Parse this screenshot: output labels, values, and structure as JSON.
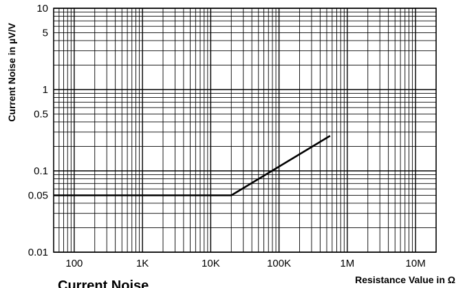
{
  "chart_data": {
    "type": "line",
    "title": "Current Noise",
    "xlabel": "Resistance Value in Ω",
    "ylabel": "Current Noise in µV/V",
    "x_scale": "log",
    "y_scale": "log",
    "xlim": [
      50,
      20000000
    ],
    "ylim": [
      0.01,
      10
    ],
    "x_ticks": [
      {
        "value": 100,
        "label": "100"
      },
      {
        "value": 1000,
        "label": "1K"
      },
      {
        "value": 10000,
        "label": "10K"
      },
      {
        "value": 100000,
        "label": "100K"
      },
      {
        "value": 1000000,
        "label": "1M"
      },
      {
        "value": 10000000,
        "label": "10M"
      }
    ],
    "y_ticks": [
      {
        "value": 10,
        "label": "10"
      },
      {
        "value": 5,
        "label": "5"
      },
      {
        "value": 1,
        "label": "1"
      },
      {
        "value": 0.5,
        "label": "0.5"
      },
      {
        "value": 0.1,
        "label": "0.1"
      },
      {
        "value": 0.05,
        "label": "0.05"
      },
      {
        "value": 0.01,
        "label": "0.01"
      }
    ],
    "grid": true,
    "series": [
      {
        "x": [
          50,
          20000,
          560000
        ],
        "y": [
          0.05,
          0.05,
          0.27
        ]
      }
    ],
    "colors": {
      "line": "#000000",
      "grid": "#000000",
      "background": "#ffffff"
    }
  }
}
